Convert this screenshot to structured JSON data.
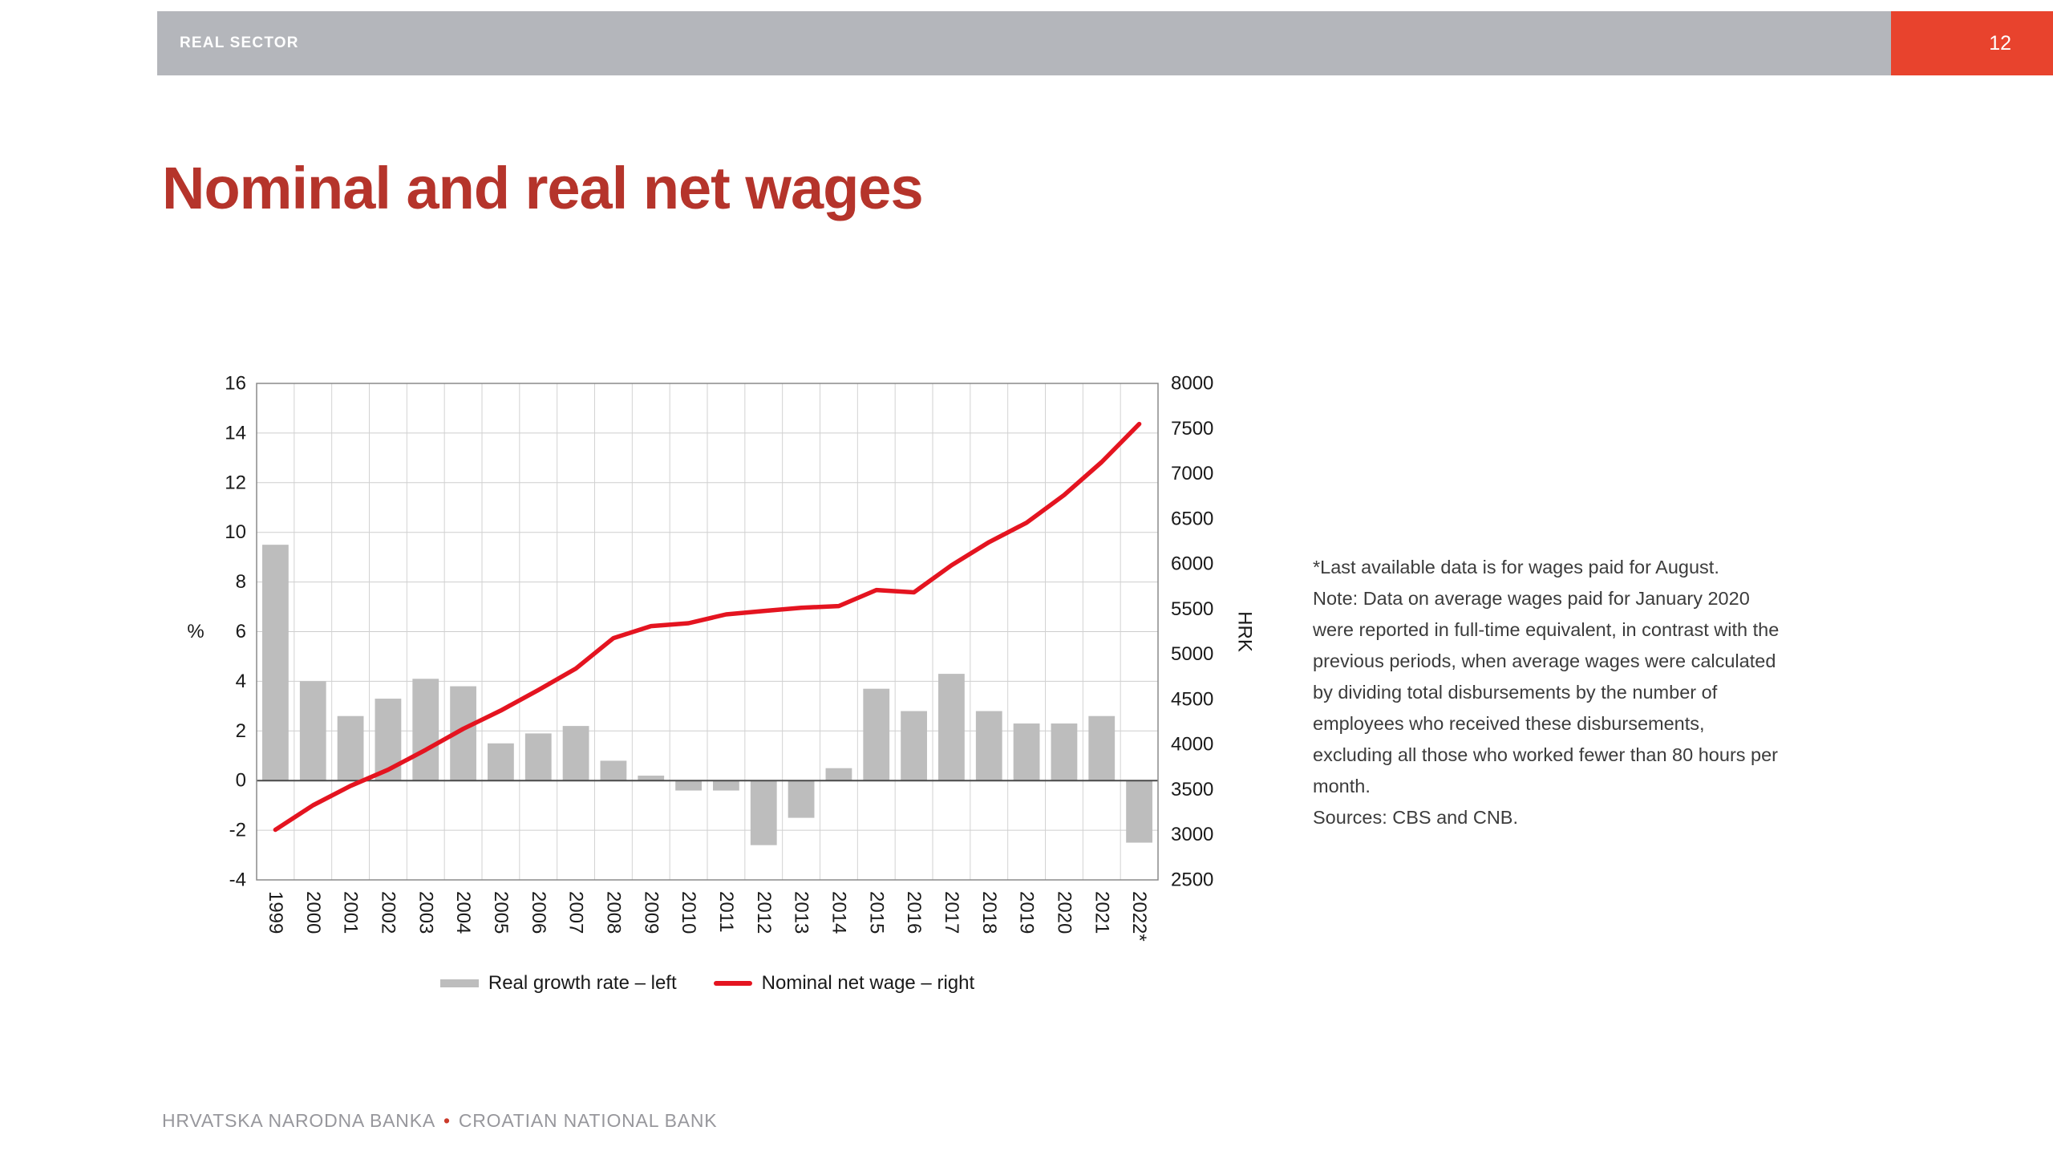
{
  "header": {
    "section_label": "REAL SECTOR",
    "page_number": "12"
  },
  "title": "Nominal and real net wages",
  "note": {
    "lines": [
      "*Last available data is for wages paid for August.",
      "Note: Data on average wages paid for January 2020",
      "were reported in full-time equivalent, in contrast with the",
      "previous periods, when average wages were calculated",
      "by dividing total disbursements by the number of",
      "employees who received these disbursements,",
      "excluding all those who worked fewer than 80 hours per",
      "month.",
      "Sources: CBS and CNB."
    ]
  },
  "footer": {
    "bank_hr": "HRVATSKA NARODNA BANKA",
    "separator": "•",
    "bank_en": "CROATIAN NATIONAL BANK"
  },
  "colors": {
    "brand-red": "#e8432d",
    "title-red": "#b5342b",
    "line-red": "#e41420",
    "bar-gray": "#bdbdbd",
    "header-bar-gray": "#b4b6bb",
    "footer-gray": "#97979c",
    "accent-dot": "#cb3a2a"
  },
  "chart_data": {
    "type": "bar+line",
    "categories": [
      "1999",
      "2000",
      "2001",
      "2002",
      "2003",
      "2004",
      "2005",
      "2006",
      "2007",
      "2008",
      "2009",
      "2010",
      "2011",
      "2012",
      "2013",
      "2014",
      "2015",
      "2016",
      "2017",
      "2018",
      "2019",
      "2020",
      "2021",
      "2022*"
    ],
    "series": [
      {
        "name": "Real growth rate – left",
        "type": "bar",
        "axis": "left",
        "color": "#bdbdbd",
        "values": [
          9.5,
          4.0,
          2.6,
          3.3,
          4.1,
          3.8,
          1.5,
          1.9,
          2.2,
          0.8,
          0.2,
          -0.4,
          -0.4,
          -2.6,
          -1.5,
          0.5,
          3.7,
          2.8,
          4.3,
          2.8,
          2.3,
          2.3,
          2.6,
          -2.5
        ]
      },
      {
        "name": "Nominal net wage – right",
        "type": "line",
        "axis": "right",
        "color": "#e41420",
        "values": [
          3055,
          3326,
          3541,
          3720,
          3940,
          4173,
          4376,
          4603,
          4841,
          5178,
          5311,
          5343,
          5441,
          5478,
          5515,
          5533,
          5711,
          5685,
          5985,
          6242,
          6457,
          6763,
          7129,
          7550
        ]
      }
    ],
    "left_axis": {
      "label": "%",
      "min": -4,
      "max": 16,
      "tick_step": 2
    },
    "right_axis": {
      "label": "HRK",
      "min": 2500,
      "max": 8000,
      "tick_step": 500
    },
    "grid": true,
    "legend_position": "bottom"
  }
}
